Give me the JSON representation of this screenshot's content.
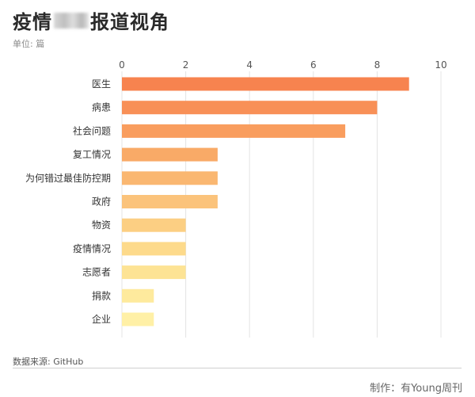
{
  "header": {
    "title_pre": "疫情",
    "title_post": "报道视角",
    "unit": "单位: 篇"
  },
  "footer": {
    "source": "数据来源: GitHub",
    "credit": "制作：有Young周刊"
  },
  "colors": {
    "bar_gradient": [
      "#f7834f",
      "#f9a462",
      "#fbc37b",
      "#fde08f",
      "#fff0a6"
    ],
    "grid": "#e4e4e4",
    "text": "#333333"
  },
  "chart_data": {
    "type": "bar",
    "orientation": "horizontal",
    "categories": [
      "医生",
      "病患",
      "社会问题",
      "复工情况",
      "为何错过最佳防控期",
      "政府",
      "物资",
      "疫情情况",
      "志愿者",
      "捐款",
      "企业"
    ],
    "values": [
      9,
      8,
      7,
      3,
      3,
      3,
      2,
      2,
      2,
      1,
      1
    ],
    "xlim": [
      0,
      10
    ],
    "xticks": [
      0,
      2,
      4,
      6,
      8,
      10
    ],
    "x_axis_position": "top",
    "grid": true
  }
}
